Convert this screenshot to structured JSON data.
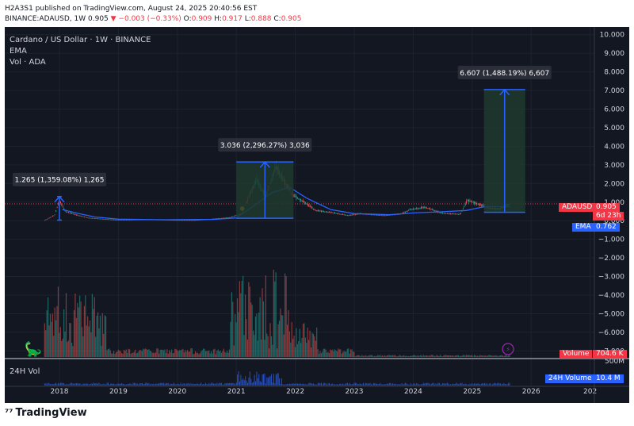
{
  "header": {
    "publish_line": "H2A3S1 published on TradingView.com, August 24, 2025 20:40:56 EST",
    "symbol": "BINANCE:ADAUSD, 1W",
    "last": "0.905",
    "arrow": "▼",
    "change": "−0.003 (−0.33%)",
    "o_label": "O:",
    "o_val": "0.909",
    "h_label": "H:",
    "h_val": "0.917",
    "l_label": "L:",
    "l_val": "0.888",
    "c_label": "C:",
    "c_val": "0.905"
  },
  "legend": {
    "title": "Cardano / US Dollar · 1W · BINANCE",
    "ema": "EMA",
    "vol": "Vol · ADA",
    "vol24": "24H Vol"
  },
  "price_tags": {
    "symbol_label": "ADAUSD",
    "symbol_value": "0.905",
    "countdown": "6d 23h",
    "ema_label": "EMA",
    "ema_value": "0.762",
    "volume_label": "Volume",
    "volume_value": "704.6 K",
    "vol24_label": "24H Volume",
    "vol24_value": "10.4 M"
  },
  "colors": {
    "background": "#131722",
    "up": "#26a69a",
    "down": "#ef5350",
    "ema": "#2962ff",
    "measure": "#2962ff",
    "measure_fill": "#1f3a2d",
    "price_tag": "#f23645",
    "ema_tag": "#2962ff",
    "vol24_tag": "#2962ff"
  },
  "footer": {
    "brand": "TradingView",
    "logo_icon": "tradingview-logo-icon"
  },
  "chart_data": {
    "type": "candlestick",
    "x_ticks": [
      "2018",
      "2019",
      "2020",
      "2021",
      "2022",
      "2023",
      "2024",
      "2025",
      "2026",
      "202"
    ],
    "y_ticks": [
      "10.000",
      "9.000",
      "8.000",
      "7.000",
      "6.000",
      "5.000",
      "4.000",
      "3.000",
      "2.000",
      "1.000",
      "0.000",
      "−1.000",
      "−2.000",
      "−3.000",
      "−4.000",
      "−5.000",
      "−6.000",
      "−7.000"
    ],
    "volume_axis_label": "500M",
    "ylim": [
      -7.6,
      10.2
    ],
    "price_series": [
      {
        "x": 2017.75,
        "y": 0.03
      },
      {
        "x": 2017.92,
        "y": 0.3
      },
      {
        "x": 2018.0,
        "y": 1.1
      },
      {
        "x": 2018.1,
        "y": 0.5
      },
      {
        "x": 2018.3,
        "y": 0.3
      },
      {
        "x": 2018.5,
        "y": 0.15
      },
      {
        "x": 2018.8,
        "y": 0.08
      },
      {
        "x": 2019.0,
        "y": 0.04
      },
      {
        "x": 2019.5,
        "y": 0.07
      },
      {
        "x": 2020.0,
        "y": 0.035
      },
      {
        "x": 2020.3,
        "y": 0.03
      },
      {
        "x": 2020.6,
        "y": 0.1
      },
      {
        "x": 2020.9,
        "y": 0.18
      },
      {
        "x": 2021.1,
        "y": 0.4
      },
      {
        "x": 2021.2,
        "y": 1.2
      },
      {
        "x": 2021.35,
        "y": 2.2
      },
      {
        "x": 2021.5,
        "y": 1.3
      },
      {
        "x": 2021.67,
        "y": 2.9
      },
      {
        "x": 2021.8,
        "y": 2.2
      },
      {
        "x": 2021.95,
        "y": 1.4
      },
      {
        "x": 2022.15,
        "y": 1.0
      },
      {
        "x": 2022.35,
        "y": 0.55
      },
      {
        "x": 2022.6,
        "y": 0.45
      },
      {
        "x": 2022.9,
        "y": 0.28
      },
      {
        "x": 2023.1,
        "y": 0.38
      },
      {
        "x": 2023.5,
        "y": 0.28
      },
      {
        "x": 2023.8,
        "y": 0.37
      },
      {
        "x": 2023.95,
        "y": 0.6
      },
      {
        "x": 2024.2,
        "y": 0.72
      },
      {
        "x": 2024.5,
        "y": 0.4
      },
      {
        "x": 2024.8,
        "y": 0.35
      },
      {
        "x": 2024.92,
        "y": 1.1
      },
      {
        "x": 2025.1,
        "y": 0.9
      },
      {
        "x": 2025.25,
        "y": 0.7
      },
      {
        "x": 2025.45,
        "y": 0.62
      },
      {
        "x": 2025.64,
        "y": 0.905
      }
    ],
    "ema_series": [
      {
        "x": 2018.05,
        "y": 0.6
      },
      {
        "x": 2018.3,
        "y": 0.4
      },
      {
        "x": 2018.6,
        "y": 0.2
      },
      {
        "x": 2019.0,
        "y": 0.08
      },
      {
        "x": 2019.8,
        "y": 0.05
      },
      {
        "x": 2020.6,
        "y": 0.07
      },
      {
        "x": 2021.0,
        "y": 0.15
      },
      {
        "x": 2021.3,
        "y": 0.8
      },
      {
        "x": 2021.6,
        "y": 1.5
      },
      {
        "x": 2021.9,
        "y": 1.8
      },
      {
        "x": 2022.2,
        "y": 1.2
      },
      {
        "x": 2022.6,
        "y": 0.6
      },
      {
        "x": 2023.0,
        "y": 0.38
      },
      {
        "x": 2023.6,
        "y": 0.32
      },
      {
        "x": 2024.0,
        "y": 0.42
      },
      {
        "x": 2024.5,
        "y": 0.48
      },
      {
        "x": 2024.9,
        "y": 0.55
      },
      {
        "x": 2025.2,
        "y": 0.75
      },
      {
        "x": 2025.64,
        "y": 0.762
      }
    ],
    "measurements": [
      {
        "label": "1.265 (1,359.08%) 1,265",
        "x1": 2017.96,
        "x2": 2018.04,
        "y_low": 0.03,
        "y_high": 1.3
      },
      {
        "label": "3.036 (2,296.27%) 3,036",
        "x1": 2021.0,
        "x2": 2021.97,
        "y_low": 0.13,
        "y_high": 3.16
      },
      {
        "label": "6.607 (1,488.19%) 6,607",
        "x1": 2025.2,
        "x2": 2025.9,
        "y_low": 0.45,
        "y_high": 7.05
      }
    ],
    "current_price": 0.905,
    "ema_current": 0.762
  }
}
